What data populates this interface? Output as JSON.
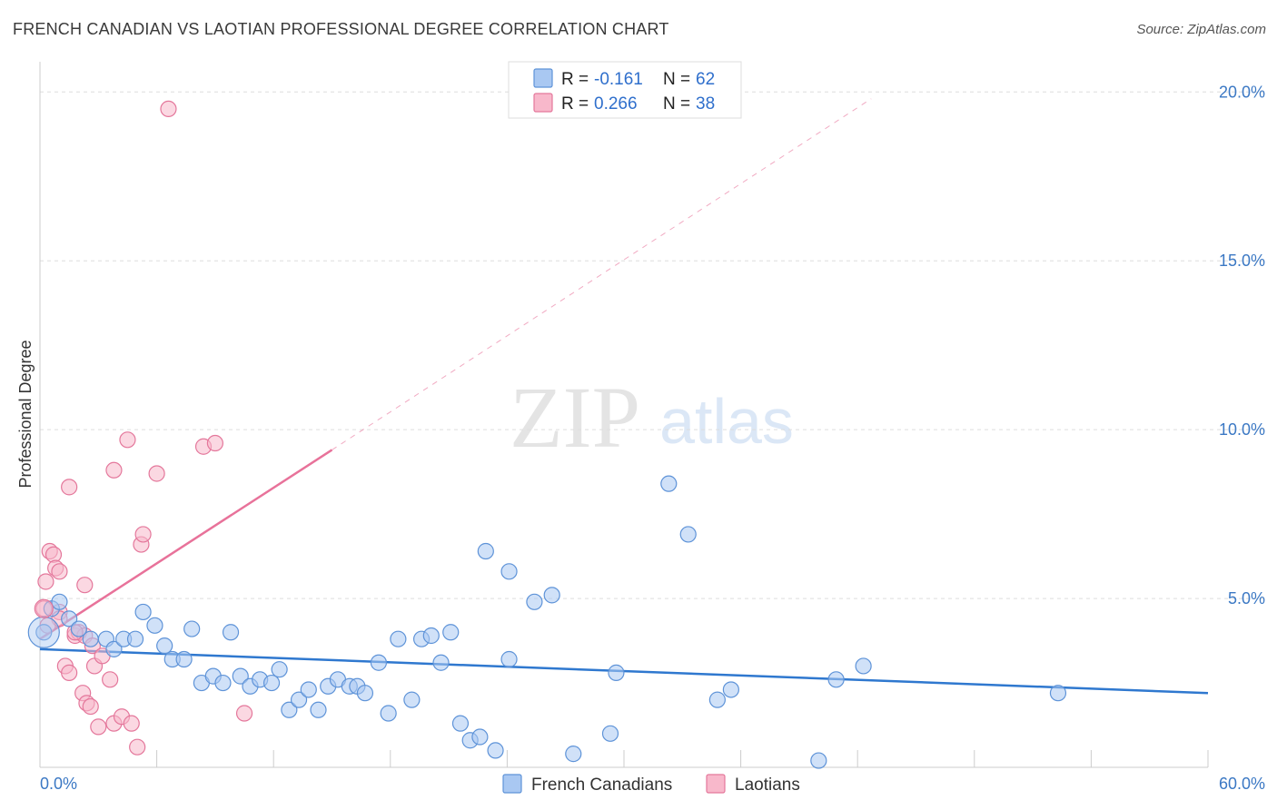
{
  "title": "FRENCH CANADIAN VS LAOTIAN PROFESSIONAL DEGREE CORRELATION CHART",
  "source": "Source: ZipAtlas.com",
  "watermark": {
    "zip": "ZIP",
    "atlas": "atlas"
  },
  "legend": {
    "r_label": "R =",
    "n_label": "N =",
    "rows": [
      {
        "name": "French Canadians",
        "r": "-0.161",
        "n": "62",
        "fill": "#a9c8f2",
        "stroke": "#5e93d8"
      },
      {
        "name": "Laotians",
        "r": "0.266",
        "n": "38",
        "fill": "#f8b8cb",
        "stroke": "#e4779b"
      }
    ]
  },
  "colors": {
    "blue_line": "#2f78cf",
    "pink_line": "#e8729a",
    "grid": "#dddddd",
    "tick_text": "#3b78c4"
  },
  "chart_data": {
    "type": "scatter",
    "title": "FRENCH CANADIAN VS LAOTIAN PROFESSIONAL DEGREE CORRELATION CHART",
    "xlabel": "",
    "ylabel": "Professional Degree",
    "xlim": [
      0,
      60
    ],
    "ylim": [
      0,
      20.6
    ],
    "x_tick_labels": {
      "min": "0.0%",
      "max": "60.0%"
    },
    "y_ticks": [
      5,
      10,
      15,
      20
    ],
    "y_tick_labels": [
      "5.0%",
      "10.0%",
      "15.0%",
      "20.0%"
    ],
    "series": [
      {
        "name": "French Canadians",
        "trend": {
          "x0": 0,
          "y0": 3.5,
          "x1": 60,
          "y1": 2.2
        },
        "points": [
          [
            0.2,
            4.0
          ],
          [
            0.6,
            4.7
          ],
          [
            1.0,
            4.9
          ],
          [
            1.5,
            4.4
          ],
          [
            2.0,
            4.1
          ],
          [
            2.6,
            3.8
          ],
          [
            3.4,
            3.8
          ],
          [
            3.8,
            3.5
          ],
          [
            4.3,
            3.8
          ],
          [
            4.9,
            3.8
          ],
          [
            5.3,
            4.6
          ],
          [
            5.9,
            4.2
          ],
          [
            6.4,
            3.6
          ],
          [
            6.8,
            3.2
          ],
          [
            7.4,
            3.2
          ],
          [
            7.8,
            4.1
          ],
          [
            8.3,
            2.5
          ],
          [
            8.9,
            2.7
          ],
          [
            9.4,
            2.5
          ],
          [
            9.8,
            4.0
          ],
          [
            10.3,
            2.7
          ],
          [
            10.8,
            2.4
          ],
          [
            11.3,
            2.6
          ],
          [
            11.9,
            2.5
          ],
          [
            12.3,
            2.9
          ],
          [
            12.8,
            1.7
          ],
          [
            13.3,
            2.0
          ],
          [
            13.8,
            2.3
          ],
          [
            14.3,
            1.7
          ],
          [
            14.8,
            2.4
          ],
          [
            15.3,
            2.6
          ],
          [
            15.9,
            2.4
          ],
          [
            16.3,
            2.4
          ],
          [
            16.7,
            2.2
          ],
          [
            17.4,
            3.1
          ],
          [
            17.9,
            1.6
          ],
          [
            18.4,
            3.8
          ],
          [
            19.1,
            2.0
          ],
          [
            19.6,
            3.8
          ],
          [
            20.1,
            3.9
          ],
          [
            20.6,
            3.1
          ],
          [
            21.1,
            4.0
          ],
          [
            21.6,
            1.3
          ],
          [
            22.1,
            0.8
          ],
          [
            22.6,
            0.9
          ],
          [
            22.9,
            6.4
          ],
          [
            23.4,
            0.5
          ],
          [
            24.1,
            5.8
          ],
          [
            24.1,
            3.2
          ],
          [
            25.4,
            4.9
          ],
          [
            26.3,
            5.1
          ],
          [
            27.4,
            0.4
          ],
          [
            29.3,
            1.0
          ],
          [
            29.6,
            2.8
          ],
          [
            32.3,
            8.4
          ],
          [
            33.3,
            6.9
          ],
          [
            34.8,
            2.0
          ],
          [
            35.5,
            2.3
          ],
          [
            40.0,
            0.2
          ],
          [
            40.9,
            2.6
          ],
          [
            42.3,
            3.0
          ],
          [
            52.3,
            2.2
          ]
        ]
      },
      {
        "name": "Laotians",
        "trend": {
          "x0": 0,
          "y0": 3.8,
          "x1": 15.0,
          "y1": 9.4,
          "dash_x1": 42.7,
          "dash_y1": 19.8
        },
        "points": [
          [
            0.2,
            4.7
          ],
          [
            0.3,
            5.5
          ],
          [
            0.5,
            6.4
          ],
          [
            0.7,
            6.3
          ],
          [
            0.8,
            5.9
          ],
          [
            1.0,
            4.6
          ],
          [
            1.0,
            4.4
          ],
          [
            1.0,
            5.8
          ],
          [
            1.3,
            3.0
          ],
          [
            1.5,
            8.3
          ],
          [
            1.5,
            2.8
          ],
          [
            1.8,
            3.9
          ],
          [
            2.0,
            4.0
          ],
          [
            2.2,
            2.2
          ],
          [
            2.3,
            3.9
          ],
          [
            2.3,
            5.4
          ],
          [
            2.4,
            1.9
          ],
          [
            2.6,
            1.8
          ],
          [
            2.7,
            3.6
          ],
          [
            2.8,
            3.0
          ],
          [
            3.0,
            1.2
          ],
          [
            3.2,
            3.3
          ],
          [
            3.6,
            2.6
          ],
          [
            3.8,
            1.3
          ],
          [
            3.8,
            8.8
          ],
          [
            4.2,
            1.5
          ],
          [
            4.5,
            9.7
          ],
          [
            4.7,
            1.3
          ],
          [
            5.0,
            0.6
          ],
          [
            5.2,
            6.6
          ],
          [
            5.3,
            6.9
          ],
          [
            6.0,
            8.7
          ],
          [
            6.6,
            19.5
          ],
          [
            8.4,
            9.5
          ],
          [
            9.0,
            9.6
          ],
          [
            10.5,
            1.6
          ],
          [
            0.4,
            4.2
          ],
          [
            1.8,
            4.0
          ]
        ]
      }
    ]
  }
}
